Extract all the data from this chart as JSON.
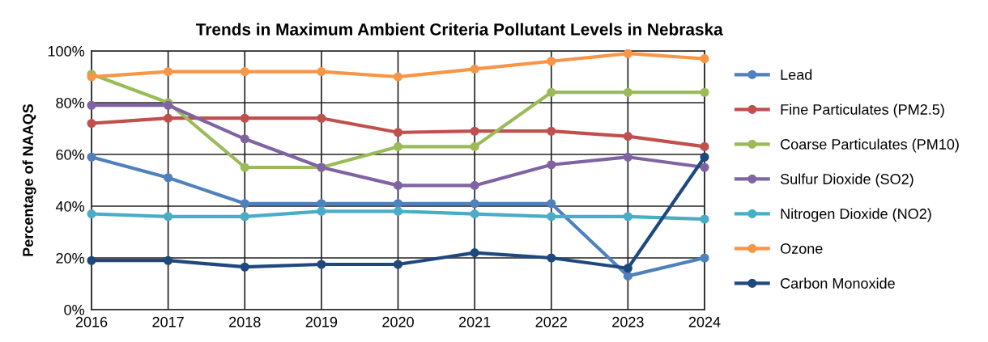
{
  "chart_data": {
    "type": "line",
    "title": "Trends in Maximum Ambient Criteria Pollutant Levels in Nebraska",
    "ylabel": "Percentage of NAAQS",
    "x": [
      2016,
      2017,
      2018,
      2019,
      2020,
      2021,
      2022,
      2023,
      2024
    ],
    "xlim": [
      2016,
      2024
    ],
    "xticks": [
      2016,
      2017,
      2018,
      2019,
      2020,
      2021,
      2022,
      2023,
      2024
    ],
    "ylim": [
      0,
      100
    ],
    "yticks": [
      {
        "value": 0,
        "label": "0%"
      },
      {
        "value": 20,
        "label": "20%"
      },
      {
        "value": 40,
        "label": "40%"
      },
      {
        "value": 60,
        "label": "60%"
      },
      {
        "value": 80,
        "label": "80%"
      },
      {
        "value": 100,
        "label": "100%"
      }
    ],
    "grid": true,
    "legend": "right",
    "marker": "circle",
    "line_style": "solid",
    "series": [
      {
        "name": "Lead",
        "color": "#4f81bd",
        "values": [
          59,
          51,
          41,
          41,
          41,
          41,
          41,
          13,
          20
        ]
      },
      {
        "name": "Fine Particulates (PM2.5)",
        "color": "#c0504d",
        "values": [
          72,
          74,
          74,
          74,
          68.5,
          69,
          69,
          67,
          63
        ]
      },
      {
        "name": "Coarse Particulates (PM10)",
        "color": "#9bbb59",
        "values": [
          91,
          80,
          55,
          55,
          63,
          63,
          84,
          84,
          84
        ]
      },
      {
        "name": "Sulfur Dioxide (SO2)",
        "color": "#8064a2",
        "values": [
          79,
          79,
          66,
          55,
          48,
          48,
          56,
          59,
          55
        ]
      },
      {
        "name": "Nitrogen Dioxide (NO2)",
        "color": "#4bacc6",
        "values": [
          37,
          36,
          36,
          38,
          38,
          37,
          36,
          36,
          35
        ]
      },
      {
        "name": "Ozone",
        "color": "#f79646",
        "values": [
          90,
          92,
          92,
          92,
          90,
          93,
          96,
          99,
          97
        ]
      },
      {
        "name": "Carbon Monoxide",
        "color": "#1f497d",
        "values": [
          19,
          19,
          16.5,
          17.5,
          17.5,
          22,
          20,
          16,
          59
        ]
      }
    ]
  }
}
